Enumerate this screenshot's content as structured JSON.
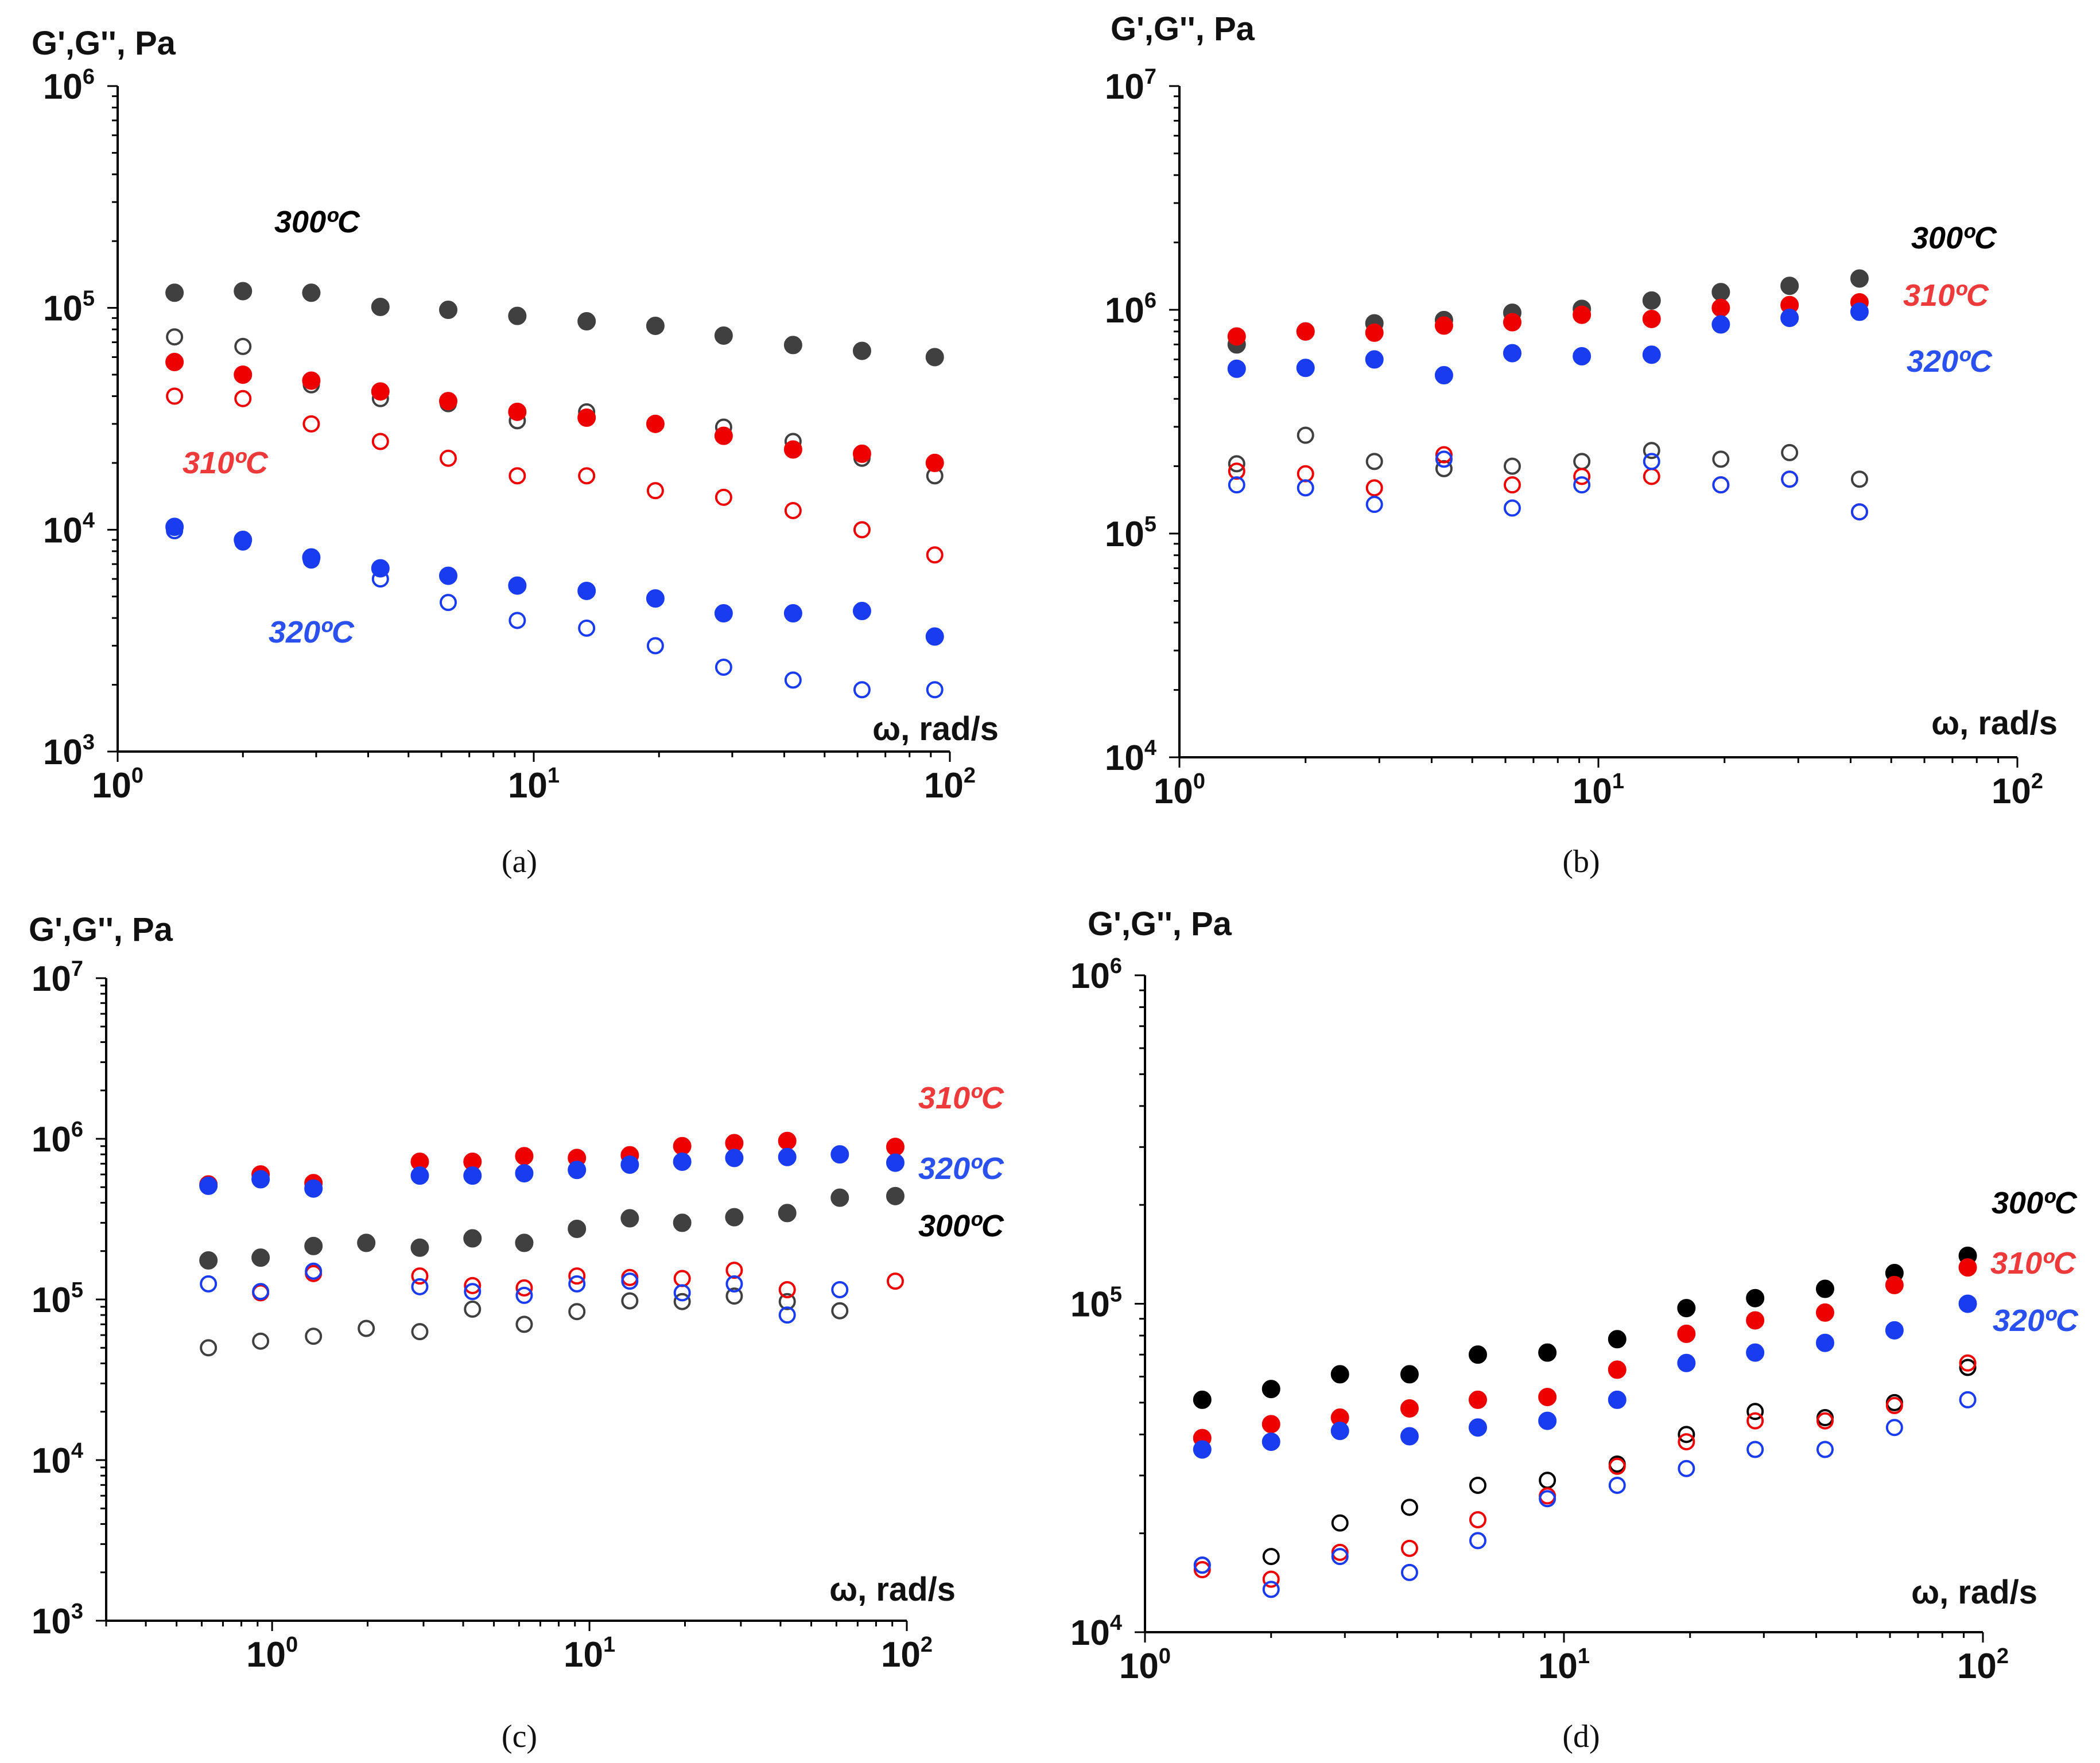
{
  "colors": {
    "t300_solid": "#404040",
    "t300_d": "#000000",
    "t310": "#ee0000",
    "t320": "#1a3cf0",
    "label_300": "#000000",
    "label_310": "#ee3a3a",
    "label_320": "#2a50f0"
  },
  "chart_data": [
    {
      "id": "a",
      "type": "scatter",
      "caption": "(a)",
      "ylabel": "G',G'', Pa",
      "xlabel": "ω, rad/s",
      "xscale": "log",
      "yscale": "log",
      "xlim": [
        1,
        100
      ],
      "ylim": [
        1000,
        1000000
      ],
      "x_ticks": [
        {
          "base": "10",
          "exp": "0"
        },
        {
          "base": "10",
          "exp": "1"
        },
        {
          "base": "10",
          "exp": "2"
        }
      ],
      "y_ticks": [
        {
          "base": "10",
          "exp": "3"
        },
        {
          "base": "10",
          "exp": "4"
        },
        {
          "base": "10",
          "exp": "5"
        },
        {
          "base": "10",
          "exp": "6"
        }
      ],
      "labels": [
        {
          "text": "300ºC",
          "color_key": "label_300"
        },
        {
          "text": "310ºC",
          "color_key": "label_310"
        },
        {
          "text": "320ºC",
          "color_key": "label_320"
        }
      ],
      "series": [
        {
          "name": "300ºC G'",
          "color_key": "t300_solid",
          "filled": true,
          "x": [
            1.37,
            2.0,
            2.92,
            4.28,
            6.23,
            9.13,
            13.4,
            19.6,
            28.6,
            42.0,
            61.5,
            92.0
          ],
          "y": [
            117000,
            119000,
            117000,
            101000,
            98000,
            92000,
            87000,
            83000,
            75000,
            68000,
            64000,
            60000
          ]
        },
        {
          "name": "300ºC G''",
          "color_key": "t300_solid",
          "filled": false,
          "x": [
            1.37,
            2.0,
            2.92,
            4.28,
            6.23,
            9.13,
            13.4,
            19.6,
            28.6,
            42.0,
            61.5,
            92.0
          ],
          "y": [
            74000,
            67000,
            45000,
            39000,
            37000,
            31000,
            34000,
            30000,
            29000,
            25000,
            21000,
            17500
          ]
        },
        {
          "name": "310ºC G'",
          "color_key": "t310",
          "filled": true,
          "x": [
            1.37,
            2.0,
            2.92,
            4.28,
            6.23,
            9.13,
            13.4,
            19.6,
            28.6,
            42.0,
            61.5,
            92.0
          ],
          "y": [
            57000,
            50000,
            47000,
            42000,
            38000,
            34000,
            32000,
            30000,
            26500,
            23000,
            22000,
            20000
          ]
        },
        {
          "name": "310ºC G''",
          "color_key": "t310",
          "filled": false,
          "x": [
            1.37,
            2.0,
            2.92,
            4.28,
            6.23,
            9.13,
            13.4,
            19.6,
            28.6,
            42.0,
            61.5,
            92.0
          ],
          "y": [
            40000,
            39000,
            30000,
            25000,
            21000,
            17500,
            17500,
            15000,
            14000,
            12200,
            10000,
            7700
          ]
        },
        {
          "name": "320ºC G'",
          "color_key": "t320",
          "filled": true,
          "x": [
            1.37,
            2.0,
            2.92,
            4.28,
            6.23,
            9.13,
            13.4,
            19.6,
            28.6,
            42.0,
            61.5,
            92.0
          ],
          "y": [
            10300,
            9000,
            7500,
            6700,
            6200,
            5600,
            5300,
            4900,
            4200,
            4200,
            4300,
            3300
          ]
        },
        {
          "name": "320ºC G''",
          "color_key": "t320",
          "filled": false,
          "x": [
            1.37,
            2.0,
            2.92,
            4.28,
            6.23,
            9.13,
            13.4,
            19.6,
            28.6,
            42.0,
            61.5,
            92.0
          ],
          "y": [
            9900,
            8800,
            7300,
            6000,
            4700,
            3900,
            3600,
            3000,
            2400,
            2100,
            1900,
            1900
          ]
        }
      ]
    },
    {
      "id": "b",
      "type": "scatter",
      "caption": "(b)",
      "ylabel": "G',G'', Pa",
      "xlabel": "ω, rad/s",
      "xscale": "log",
      "yscale": "log",
      "xlim": [
        1,
        100
      ],
      "ylim": [
        10000,
        10000000
      ],
      "x_ticks": [
        {
          "base": "10",
          "exp": "0"
        },
        {
          "base": "10",
          "exp": "1"
        },
        {
          "base": "10",
          "exp": "2"
        }
      ],
      "y_ticks": [
        {
          "base": "10",
          "exp": "4"
        },
        {
          "base": "10",
          "exp": "5"
        },
        {
          "base": "10",
          "exp": "6"
        },
        {
          "base": "10",
          "exp": "7"
        }
      ],
      "labels": [
        {
          "text": "300ºC",
          "color_key": "label_300"
        },
        {
          "text": "310ºC",
          "color_key": "label_310"
        },
        {
          "text": "320ºC",
          "color_key": "label_320"
        }
      ],
      "series": [
        {
          "name": "300ºC G'",
          "color_key": "t300_solid",
          "filled": true,
          "x": [
            1.37,
            2.0,
            2.92,
            4.28,
            6.23,
            9.13,
            13.4,
            19.6,
            28.6,
            42.0
          ],
          "y": [
            700000,
            800000,
            870000,
            900000,
            970000,
            1010000,
            1100000,
            1200000,
            1280000,
            1380000
          ]
        },
        {
          "name": "300ºC G''",
          "color_key": "t300_solid",
          "filled": false,
          "x": [
            1.37,
            2.0,
            2.92,
            4.28,
            6.23,
            9.13,
            13.4,
            19.6,
            28.6,
            42.0
          ],
          "y": [
            205000,
            275000,
            210000,
            195000,
            200000,
            210000,
            235000,
            215000,
            230000,
            175000
          ]
        },
        {
          "name": "310ºC G'",
          "color_key": "t310",
          "filled": true,
          "x": [
            1.37,
            2.0,
            2.92,
            4.28,
            6.23,
            9.13,
            13.4,
            19.6,
            28.6,
            42.0
          ],
          "y": [
            760000,
            800000,
            790000,
            850000,
            880000,
            950000,
            910000,
            1020000,
            1050000,
            1080000
          ]
        },
        {
          "name": "310ºC G''",
          "color_key": "t310",
          "filled": false,
          "x": [
            1.37,
            2.0,
            2.92,
            4.28,
            6.23,
            9.13,
            13.4,
            19.6,
            28.6,
            42.0
          ],
          "y": [
            190000,
            185000,
            160000,
            225000,
            165000,
            180000,
            180000,
            165000,
            175000,
            125000
          ]
        },
        {
          "name": "320ºC G'",
          "color_key": "t320",
          "filled": true,
          "x": [
            1.37,
            2.0,
            2.92,
            4.28,
            6.23,
            9.13,
            13.4,
            19.6,
            28.6,
            42.0
          ],
          "y": [
            545000,
            550000,
            600000,
            510000,
            640000,
            620000,
            630000,
            860000,
            920000,
            980000
          ]
        },
        {
          "name": "320ºC G''",
          "color_key": "t320",
          "filled": false,
          "x": [
            1.37,
            2.0,
            2.92,
            4.28,
            6.23,
            9.13,
            13.4,
            19.6,
            28.6,
            42.0
          ],
          "y": [
            165000,
            160000,
            135000,
            215000,
            130000,
            165000,
            210000,
            165000,
            175000,
            125000
          ]
        }
      ]
    },
    {
      "id": "c",
      "type": "scatter",
      "caption": "(c)",
      "ylabel": "G',G'', Pa",
      "xlabel": "ω, rad/s",
      "xscale": "log",
      "yscale": "log",
      "xlim": [
        0.3,
        100
      ],
      "ylim": [
        1000,
        10000000
      ],
      "x_ticks": [
        {
          "base": "10",
          "exp": "0"
        },
        {
          "base": "10",
          "exp": "1"
        },
        {
          "base": "10",
          "exp": "2"
        }
      ],
      "y_ticks": [
        {
          "base": "10",
          "exp": "3"
        },
        {
          "base": "10",
          "exp": "4"
        },
        {
          "base": "10",
          "exp": "5"
        },
        {
          "base": "10",
          "exp": "6"
        },
        {
          "base": "10",
          "exp": "7"
        }
      ],
      "labels": [
        {
          "text": "310ºC",
          "color_key": "label_310"
        },
        {
          "text": "320ºC",
          "color_key": "label_320"
        },
        {
          "text": "300ºC",
          "color_key": "label_300"
        }
      ],
      "series": [
        {
          "name": "300ºC G'",
          "color_key": "t300_solid",
          "filled": true,
          "x": [
            0.63,
            0.92,
            1.35,
            1.98,
            2.92,
            4.28,
            6.23,
            9.13,
            13.4,
            19.6,
            28.6,
            42.0,
            61.5,
            92.0
          ],
          "y": [
            175000,
            182000,
            215000,
            225000,
            210000,
            240000,
            225000,
            275000,
            320000,
            300000,
            325000,
            345000,
            430000,
            440000
          ]
        },
        {
          "name": "300ºC G''",
          "color_key": "t300_solid",
          "filled": false,
          "x": [
            0.63,
            0.92,
            1.35,
            1.98,
            2.92,
            4.28,
            6.23,
            9.13,
            13.4,
            19.6,
            28.6,
            42.0,
            61.5
          ],
          "y": [
            50000,
            55000,
            59000,
            66000,
            63000,
            87000,
            70000,
            84000,
            98000,
            97000,
            105000,
            97000,
            85000
          ]
        },
        {
          "name": "310ºC G'",
          "color_key": "t310",
          "filled": true,
          "x": [
            0.63,
            0.92,
            1.35,
            2.92,
            4.28,
            6.23,
            9.13,
            13.4,
            19.6,
            28.6,
            42.0,
            92.0
          ],
          "y": [
            520000,
            600000,
            530000,
            720000,
            720000,
            780000,
            760000,
            790000,
            900000,
            940000,
            970000,
            890000
          ]
        },
        {
          "name": "310ºC G''",
          "color_key": "t310",
          "filled": false,
          "x": [
            0.92,
            1.35,
            2.92,
            4.28,
            6.23,
            9.13,
            13.4,
            19.6,
            28.6,
            42.0,
            92.0
          ],
          "y": [
            110000,
            145000,
            140000,
            122000,
            118000,
            140000,
            137000,
            135000,
            152000,
            115000,
            130000
          ]
        },
        {
          "name": "320ºC G'",
          "color_key": "t320",
          "filled": true,
          "x": [
            0.63,
            0.92,
            1.35,
            2.92,
            4.28,
            6.23,
            9.13,
            13.4,
            19.6,
            28.6,
            42.0,
            61.5,
            92.0
          ],
          "y": [
            510000,
            560000,
            490000,
            590000,
            590000,
            610000,
            640000,
            690000,
            720000,
            760000,
            770000,
            800000,
            710000
          ]
        },
        {
          "name": "320ºC G''",
          "color_key": "t320",
          "filled": false,
          "x": [
            0.63,
            0.92,
            1.35,
            2.92,
            4.28,
            6.23,
            9.13,
            13.4,
            19.6,
            28.6,
            42.0,
            61.5
          ],
          "y": [
            125000,
            112000,
            150000,
            120000,
            112000,
            106000,
            125000,
            130000,
            110000,
            125000,
            80000,
            115000
          ]
        }
      ]
    },
    {
      "id": "d",
      "type": "scatter",
      "caption": "(d)",
      "ylabel": "G',G'', Pa",
      "xlabel": "ω, rad/s",
      "xscale": "log",
      "yscale": "log",
      "xlim": [
        1,
        100
      ],
      "ylim": [
        10000,
        1000000
      ],
      "x_ticks": [
        {
          "base": "10",
          "exp": "0"
        },
        {
          "base": "10",
          "exp": "1"
        },
        {
          "base": "10",
          "exp": "2"
        }
      ],
      "y_ticks": [
        {
          "base": "10",
          "exp": "4"
        },
        {
          "base": "10",
          "exp": "5"
        },
        {
          "base": "10",
          "exp": "6"
        }
      ],
      "labels": [
        {
          "text": "300ºC",
          "color_key": "label_300"
        },
        {
          "text": "310ºC",
          "color_key": "label_310"
        },
        {
          "text": "320ºC",
          "color_key": "label_320"
        }
      ],
      "series": [
        {
          "name": "300ºC G'",
          "color_key": "t300_d",
          "filled": true,
          "x": [
            1.37,
            2.0,
            2.92,
            4.28,
            6.23,
            9.13,
            13.4,
            19.6,
            28.6,
            42.0,
            61.5,
            92.0
          ],
          "y": [
            51000,
            55000,
            61000,
            61000,
            70000,
            71000,
            78000,
            97000,
            104000,
            111000,
            124000,
            140000
          ]
        },
        {
          "name": "300ºC G''",
          "color_key": "t300_d",
          "filled": false,
          "x": [
            1.37,
            2.0,
            2.92,
            4.28,
            6.23,
            9.13,
            13.4,
            19.6,
            28.6,
            42.0,
            61.5,
            92.0
          ],
          "y": [
            16000,
            17000,
            21500,
            24000,
            28000,
            29000,
            32500,
            40000,
            47000,
            45000,
            50000,
            64000
          ]
        },
        {
          "name": "310ºC G'",
          "color_key": "t310",
          "filled": true,
          "x": [
            1.37,
            2.0,
            2.92,
            4.28,
            6.23,
            9.13,
            13.4,
            19.6,
            28.6,
            42.0,
            61.5,
            92.0
          ],
          "y": [
            39000,
            43000,
            45000,
            48000,
            51000,
            52000,
            63000,
            81000,
            89000,
            94000,
            114000,
            129000
          ]
        },
        {
          "name": "310ºC G''",
          "color_key": "t310",
          "filled": false,
          "x": [
            1.37,
            2.0,
            2.92,
            4.28,
            6.23,
            9.13,
            13.4,
            19.6,
            28.6,
            42.0,
            61.5,
            92.0
          ],
          "y": [
            15500,
            14500,
            17500,
            18000,
            22000,
            26000,
            32000,
            38000,
            44000,
            44000,
            49000,
            66000
          ]
        },
        {
          "name": "320ºC G'",
          "color_key": "t320",
          "filled": true,
          "x": [
            1.37,
            2.0,
            2.92,
            4.28,
            6.23,
            9.13,
            13.4,
            19.6,
            28.6,
            42.0,
            61.5,
            92.0
          ],
          "y": [
            36000,
            38000,
            41000,
            39500,
            42000,
            44000,
            51000,
            66000,
            71000,
            76000,
            83000,
            100000
          ]
        },
        {
          "name": "320ºC G''",
          "color_key": "t320",
          "filled": false,
          "x": [
            1.37,
            2.0,
            2.92,
            4.28,
            6.23,
            9.13,
            13.4,
            19.6,
            28.6,
            42.0,
            61.5,
            92.0
          ],
          "y": [
            16000,
            13500,
            17000,
            15200,
            19000,
            25500,
            28000,
            31500,
            36000,
            36000,
            42000,
            51000
          ]
        }
      ]
    }
  ]
}
